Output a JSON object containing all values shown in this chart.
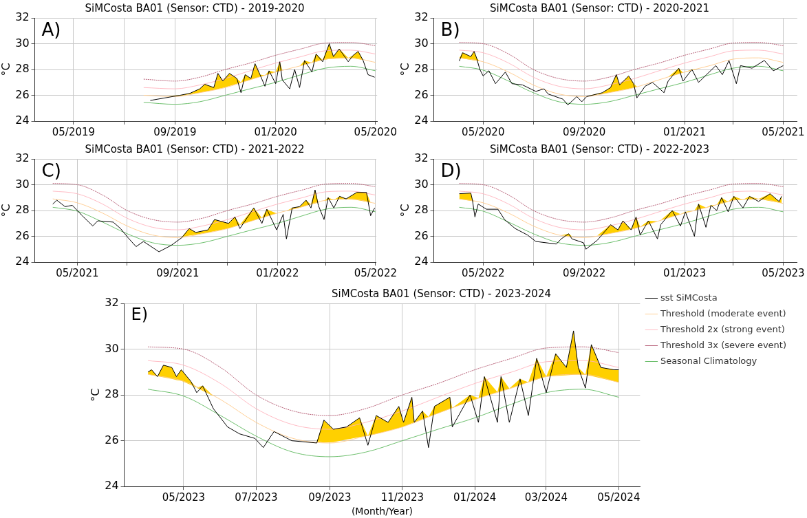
{
  "chart_data": [
    {
      "type": "line",
      "title": "SiMCosta BA01 (Sensor: CTD) - 2019-2020",
      "ylabel": "°C",
      "annotations": [
        "A)"
      ],
      "xlim": [
        "2019-03-15",
        "2020-05-03"
      ],
      "xticks": [
        {
          "value": "2019-05-01",
          "label": "05/2019"
        },
        {
          "value": "2019-07-01",
          "label": null
        },
        {
          "value": "2019-09-01",
          "label": "09/2019"
        },
        {
          "value": "2019-11-01",
          "label": null
        },
        {
          "value": "2020-01-01",
          "label": "01/2020"
        },
        {
          "value": "2020-03-01",
          "label": null
        },
        {
          "value": "2020-05-01",
          "label": "05/2020"
        }
      ],
      "ylim": [
        24,
        32
      ],
      "yticks": [
        24,
        26,
        28,
        30,
        32
      ],
      "grid": true,
      "x": [
        "2019-07-25",
        "2019-09-01",
        "2019-10-01",
        "2019-11-01",
        "2019-12-01",
        "2020-01-01",
        "2020-02-01",
        "2020-03-01",
        "2020-04-01",
        "2020-05-01"
      ],
      "series": [
        {
          "color": "#000000",
          "x": [
            "2019-08-02",
            "2019-08-20",
            "2019-09-07",
            "2019-09-19",
            "2019-10-01",
            "2019-10-07",
            "2019-10-18",
            "2019-10-23",
            "2019-10-29",
            "2019-11-06",
            "2019-11-15",
            "2019-11-20",
            "2019-11-25",
            "2019-12-02",
            "2019-12-07",
            "2019-12-13",
            "2019-12-19",
            "2019-12-24",
            "2020-01-01",
            "2020-01-06",
            "2020-01-09",
            "2020-01-18",
            "2020-01-24",
            "2020-01-30",
            "2020-02-05",
            "2020-02-14",
            "2020-02-19",
            "2020-02-27",
            "2020-03-06",
            "2020-03-11",
            "2020-03-18",
            "2020-03-29",
            "2020-04-04",
            "2020-04-10",
            "2020-04-16",
            "2020-04-22",
            "2020-04-30"
          ],
          "values": [
            25.6,
            25.8,
            26.0,
            26.15,
            26.5,
            26.85,
            26.6,
            27.7,
            27.1,
            27.7,
            27.3,
            26.2,
            27.6,
            27.3,
            28.45,
            27.6,
            26.7,
            27.9,
            26.9,
            28.6,
            27.2,
            26.5,
            28.0,
            26.6,
            28.7,
            27.8,
            29.2,
            28.6,
            30.0,
            29.0,
            29.6,
            28.6,
            29.1,
            29.4,
            28.7,
            27.6,
            27.4
          ],
          "lower": [
            26.0,
            25.95,
            25.96,
            26.08,
            26.2,
            26.28,
            26.42,
            26.49,
            26.57,
            26.72,
            26.9,
            27.0,
            27.1,
            27.22,
            27.32,
            27.43,
            27.55,
            27.65,
            27.8,
            27.88,
            27.93,
            28.07,
            28.17,
            28.27,
            28.37,
            28.52,
            28.6,
            28.74,
            28.82,
            28.83,
            28.86,
            28.89,
            28.87,
            28.8,
            28.73,
            28.66,
            28.56
          ],
          "upper": [
            26.0,
            25.95,
            26.0,
            26.15,
            26.5,
            26.85,
            26.6,
            27.7,
            27.1,
            27.7,
            27.3,
            27.0,
            27.6,
            27.3,
            28.45,
            27.6,
            27.55,
            27.9,
            27.8,
            28.6,
            27.93,
            28.07,
            28.17,
            28.27,
            28.7,
            28.52,
            29.2,
            28.74,
            30.0,
            29.0,
            29.6,
            28.89,
            29.1,
            29.4,
            28.73,
            28.66,
            28.56
          ]
        },
        {
          "color": "#ffc98a",
          "values": [
            26.0,
            25.9,
            26.2,
            26.6,
            27.2,
            27.8,
            28.3,
            28.8,
            28.9,
            28.55
          ]
        },
        {
          "color": "#ffb3bd",
          "values": [
            26.6,
            26.5,
            26.8,
            27.3,
            27.9,
            28.5,
            29.0,
            29.45,
            29.5,
            29.2
          ]
        },
        {
          "color": "#b0506a",
          "line_style": "dotted",
          "values": [
            27.25,
            27.1,
            27.4,
            28.0,
            28.5,
            29.1,
            29.6,
            30.05,
            30.1,
            29.85
          ]
        },
        {
          "color": "#5cb85c",
          "values": [
            25.45,
            25.3,
            25.5,
            26.0,
            26.5,
            27.0,
            27.6,
            28.1,
            28.25,
            27.9
          ]
        }
      ]
    },
    {
      "type": "line",
      "title": "SiMCosta BA01 (Sensor: CTD) - 2020-2021",
      "ylabel": "°C",
      "annotations": [
        "B)"
      ],
      "xlim": [
        "2020-03-02",
        "2021-05-18"
      ],
      "xticks": [
        {
          "value": "2020-05-01",
          "label": "05/2020"
        },
        {
          "value": "2020-07-01",
          "label": null
        },
        {
          "value": "2020-09-01",
          "label": "09/2020"
        },
        {
          "value": "2020-11-01",
          "label": null
        },
        {
          "value": "2021-01-01",
          "label": "01/2021"
        },
        {
          "value": "2021-03-01",
          "label": null
        },
        {
          "value": "2021-05-01",
          "label": "05/2021"
        }
      ],
      "ylim": [
        24,
        32
      ],
      "yticks": [
        24,
        26,
        28,
        30,
        32
      ],
      "grid": true,
      "x": [
        "2020-04-02",
        "2020-05-01",
        "2020-06-01",
        "2020-07-01",
        "2020-08-01",
        "2020-09-01",
        "2020-10-01",
        "2020-11-01",
        "2020-12-01",
        "2021-01-01",
        "2021-02-01",
        "2021-03-01",
        "2021-04-01",
        "2021-05-01"
      ],
      "series": [
        {
          "color": "#000000",
          "x": [
            "2020-04-02",
            "2020-04-06",
            "2020-04-16",
            "2020-04-20",
            "2020-04-23",
            "2020-04-27",
            "2020-05-01",
            "2020-05-08",
            "2020-05-16",
            "2020-05-28",
            "2020-06-05",
            "2020-06-18",
            "2020-07-04",
            "2020-07-14",
            "2020-07-19",
            "2020-08-06",
            "2020-08-12",
            "2020-08-23",
            "2020-08-29",
            "2020-09-04",
            "2020-09-23",
            "2020-10-03",
            "2020-10-10",
            "2020-10-14",
            "2020-10-25",
            "2020-10-31",
            "2020-11-04",
            "2020-11-14",
            "2020-11-23",
            "2020-12-07",
            "2020-12-12",
            "2020-12-25",
            "2020-12-30",
            "2021-01-10",
            "2021-01-18",
            "2021-02-08",
            "2021-02-16",
            "2021-02-24",
            "2021-03-05",
            "2021-03-10",
            "2021-03-24",
            "2021-04-08",
            "2021-04-19",
            "2021-05-01"
          ],
          "values": [
            28.65,
            29.3,
            29.0,
            29.4,
            28.9,
            28.0,
            27.5,
            27.9,
            26.9,
            27.8,
            26.9,
            26.8,
            26.3,
            26.5,
            26.1,
            25.7,
            25.25,
            25.9,
            25.5,
            25.9,
            26.2,
            26.6,
            27.6,
            26.8,
            27.5,
            26.9,
            25.8,
            26.7,
            27.0,
            26.2,
            27.1,
            28.1,
            27.1,
            28.0,
            27.0,
            28.3,
            27.6,
            28.7,
            26.9,
            28.3,
            28.1,
            28.7,
            27.9,
            28.3
          ],
          "lower": [
            28.9,
            28.85,
            28.75,
            28.71,
            28.68,
            28.64,
            28.6,
            28.42,
            28.21,
            27.9,
            27.67,
            27.23,
            26.73,
            26.51,
            26.39,
            26.07,
            26.03,
            25.96,
            25.92,
            25.93,
            26.12,
            26.23,
            26.32,
            26.37,
            26.51,
            26.59,
            26.68,
            26.88,
            27.06,
            27.32,
            27.41,
            27.66,
            27.76,
            27.95,
            28.07,
            28.42,
            28.55,
            28.69,
            28.81,
            28.83,
            28.87,
            28.82,
            28.69,
            28.55
          ],
          "upper": [
            28.9,
            29.3,
            29.0,
            29.4,
            28.9,
            28.64,
            28.6,
            28.42,
            28.21,
            27.9,
            27.67,
            27.23,
            26.73,
            26.51,
            26.39,
            26.07,
            26.03,
            25.96,
            25.92,
            25.93,
            26.2,
            26.6,
            27.6,
            26.8,
            27.5,
            26.9,
            26.68,
            26.88,
            27.06,
            27.32,
            27.41,
            28.1,
            27.76,
            28.0,
            28.07,
            28.42,
            28.55,
            28.7,
            28.81,
            28.83,
            28.87,
            28.82,
            28.69,
            28.55
          ]
        },
        {
          "color": "#ffc98a",
          "values": [
            28.9,
            28.6,
            27.8,
            26.8,
            26.1,
            25.9,
            26.2,
            26.6,
            27.2,
            27.8,
            28.3,
            28.8,
            28.9,
            28.55
          ]
        },
        {
          "color": "#ffb3bd",
          "values": [
            29.5,
            29.3,
            28.5,
            27.4,
            26.7,
            26.5,
            26.8,
            27.3,
            27.9,
            28.5,
            29.0,
            29.45,
            29.5,
            29.2
          ]
        },
        {
          "color": "#b0506a",
          "line_style": "dotted",
          "values": [
            30.1,
            30.0,
            29.2,
            28.0,
            27.3,
            27.1,
            27.4,
            28.0,
            28.5,
            29.1,
            29.6,
            30.05,
            30.1,
            29.85
          ]
        },
        {
          "color": "#5cb85c",
          "values": [
            28.25,
            27.95,
            27.1,
            26.2,
            25.5,
            25.3,
            25.5,
            26.0,
            26.5,
            27.0,
            27.6,
            28.1,
            28.25,
            27.9
          ]
        }
      ]
    },
    {
      "type": "line",
      "title": "SiMCosta BA01 (Sensor: CTD) - 2021-2022",
      "ylabel": "°C",
      "annotations": [
        "C)"
      ],
      "xlim": [
        "2021-03-10",
        "2022-05-02"
      ],
      "xticks": [
        {
          "value": "2021-05-01",
          "label": "05/2021"
        },
        {
          "value": "2021-07-01",
          "label": null
        },
        {
          "value": "2021-09-01",
          "label": "09/2021"
        },
        {
          "value": "2021-11-01",
          "label": null
        },
        {
          "value": "2022-01-01",
          "label": "01/2022"
        },
        {
          "value": "2022-03-01",
          "label": null
        },
        {
          "value": "2022-05-01",
          "label": "05/2022"
        }
      ],
      "ylim": [
        24,
        32
      ],
      "yticks": [
        24,
        26,
        28,
        30,
        32
      ],
      "grid": true,
      "x": [
        "2021-04-01",
        "2021-05-01",
        "2021-06-01",
        "2021-07-01",
        "2021-08-01",
        "2021-09-01",
        "2021-10-01",
        "2021-11-01",
        "2021-12-01",
        "2022-01-01",
        "2022-02-01",
        "2022-03-01",
        "2022-04-01",
        "2022-05-01"
      ],
      "series": [
        {
          "color": "#000000",
          "x": [
            "2021-04-01",
            "2021-04-06",
            "2021-04-16",
            "2021-04-25",
            "2021-05-07",
            "2021-05-20",
            "2021-05-26",
            "2021-06-14",
            "2021-06-23",
            "2021-07-02",
            "2021-07-12",
            "2021-07-21",
            "2021-08-09",
            "2021-08-24",
            "2021-09-06",
            "2021-09-15",
            "2021-09-23",
            "2021-10-08",
            "2021-10-16",
            "2021-11-02",
            "2021-11-10",
            "2021-11-16",
            "2021-12-03",
            "2021-12-13",
            "2021-12-19",
            "2021-12-31",
            "2022-01-08",
            "2022-01-12",
            "2022-01-19",
            "2022-01-28",
            "2022-02-05",
            "2022-02-11",
            "2022-02-16",
            "2022-02-20",
            "2022-02-27",
            "2022-03-04",
            "2022-03-11",
            "2022-03-18",
            "2022-03-26",
            "2022-04-08",
            "2022-04-20",
            "2022-04-25",
            "2022-04-30"
          ],
          "values": [
            28.5,
            28.8,
            28.3,
            28.4,
            27.6,
            26.8,
            27.2,
            27.1,
            26.6,
            25.9,
            25.2,
            25.6,
            24.8,
            25.3,
            25.9,
            26.6,
            26.3,
            26.5,
            27.3,
            27.0,
            27.5,
            26.6,
            28.2,
            27.0,
            28.1,
            26.5,
            27.7,
            25.8,
            28.2,
            28.3,
            28.8,
            28.2,
            29.6,
            28.4,
            27.3,
            29.0,
            28.2,
            29.1,
            28.9,
            29.4,
            29.4,
            27.6,
            28.2
          ],
          "lower": [
            28.9,
            28.85,
            28.75,
            28.66,
            28.45,
            28.11,
            27.95,
            27.44,
            27.13,
            26.78,
            26.55,
            26.35,
            26.05,
            25.95,
            25.96,
            26.05,
            26.13,
            26.3,
            26.4,
            26.62,
            26.78,
            26.9,
            27.24,
            27.43,
            27.55,
            27.78,
            27.9,
            27.97,
            28.08,
            28.22,
            28.37,
            28.47,
            28.55,
            28.62,
            28.74,
            28.81,
            28.83,
            28.85,
            28.88,
            28.82,
            28.68,
            28.62,
            28.56
          ],
          "upper": [
            28.9,
            28.85,
            28.75,
            28.66,
            28.45,
            28.11,
            27.95,
            27.44,
            27.13,
            26.78,
            26.55,
            26.35,
            26.05,
            25.95,
            25.96,
            26.6,
            26.3,
            26.5,
            27.3,
            27.0,
            27.5,
            26.9,
            28.2,
            27.43,
            28.1,
            27.78,
            27.9,
            27.97,
            28.2,
            28.3,
            28.8,
            28.47,
            29.6,
            28.62,
            28.74,
            29.0,
            28.83,
            29.1,
            28.9,
            29.4,
            29.4,
            28.62,
            28.56
          ]
        },
        {
          "color": "#ffc98a",
          "values": [
            28.9,
            28.6,
            27.8,
            26.8,
            26.1,
            25.9,
            26.2,
            26.6,
            27.2,
            27.8,
            28.3,
            28.8,
            28.9,
            28.55
          ]
        },
        {
          "color": "#ffb3bd",
          "values": [
            29.5,
            29.3,
            28.5,
            27.4,
            26.7,
            26.5,
            26.8,
            27.3,
            27.9,
            28.5,
            29.0,
            29.45,
            29.5,
            29.2
          ]
        },
        {
          "color": "#b0506a",
          "line_style": "dotted",
          "values": [
            30.1,
            30.0,
            29.2,
            28.0,
            27.3,
            27.1,
            27.4,
            28.0,
            28.5,
            29.1,
            29.6,
            30.05,
            30.1,
            29.85
          ]
        },
        {
          "color": "#5cb85c",
          "values": [
            28.25,
            27.95,
            27.1,
            26.2,
            25.5,
            25.3,
            25.5,
            26.0,
            26.5,
            27.0,
            27.6,
            28.1,
            28.25,
            27.9
          ]
        }
      ]
    },
    {
      "type": "line",
      "title": "SiMCosta BA01 (Sensor: CTD) - 2022-2023",
      "ylabel": "°C",
      "annotations": [
        "D)"
      ],
      "xlim": [
        "2022-03-02",
        "2023-05-18"
      ],
      "xticks": [
        {
          "value": "2022-05-01",
          "label": "05/2022"
        },
        {
          "value": "2022-07-01",
          "label": null
        },
        {
          "value": "2022-09-01",
          "label": "09/2022"
        },
        {
          "value": "2022-11-01",
          "label": null
        },
        {
          "value": "2023-01-01",
          "label": "01/2023"
        },
        {
          "value": "2023-03-01",
          "label": null
        },
        {
          "value": "2023-05-01",
          "label": "05/2023"
        }
      ],
      "ylim": [
        24,
        32
      ],
      "yticks": [
        24,
        26,
        28,
        30,
        32
      ],
      "grid": true,
      "x": [
        "2022-04-02",
        "2022-05-01",
        "2022-06-01",
        "2022-07-01",
        "2022-08-01",
        "2022-09-01",
        "2022-10-01",
        "2022-11-01",
        "2022-12-01",
        "2023-01-01",
        "2023-02-01",
        "2023-03-01",
        "2023-04-01",
        "2023-05-01"
      ],
      "series": [
        {
          "color": "#000000",
          "x": [
            "2022-04-02",
            "2022-04-16",
            "2022-04-18",
            "2022-04-21",
            "2022-04-25",
            "2022-05-05",
            "2022-05-19",
            "2022-05-27",
            "2022-06-09",
            "2022-06-24",
            "2022-07-04",
            "2022-07-29",
            "2022-08-04",
            "2022-08-13",
            "2022-08-17",
            "2022-08-31",
            "2022-09-03",
            "2022-09-17",
            "2022-10-03",
            "2022-10-12",
            "2022-10-18",
            "2022-10-28",
            "2022-11-03",
            "2022-11-08",
            "2022-11-18",
            "2022-11-29",
            "2022-12-03",
            "2022-12-17",
            "2022-12-27",
            "2023-01-02",
            "2023-01-13",
            "2023-01-18",
            "2023-01-27",
            "2023-02-02",
            "2023-02-09",
            "2023-02-15",
            "2023-02-23",
            "2023-03-02",
            "2023-03-13",
            "2023-03-21",
            "2023-04-01",
            "2023-04-15",
            "2023-04-26",
            "2023-04-29"
          ],
          "values": [
            29.3,
            29.35,
            28.8,
            27.5,
            28.5,
            28.1,
            28.1,
            27.3,
            26.6,
            26.1,
            25.6,
            25.4,
            25.8,
            26.2,
            25.8,
            25.5,
            25.0,
            25.7,
            26.9,
            26.5,
            27.2,
            26.5,
            27.5,
            26.1,
            27.2,
            25.8,
            26.9,
            28.0,
            26.8,
            27.9,
            26.0,
            28.5,
            26.7,
            28.4,
            28.0,
            29.0,
            27.9,
            29.1,
            28.2,
            29.1,
            28.7,
            29.3,
            28.7,
            29.1
          ],
          "lower": [
            28.9,
            28.75,
            28.73,
            28.7,
            28.66,
            28.5,
            28.14,
            27.93,
            27.53,
            27.03,
            26.73,
            26.16,
            26.08,
            26.02,
            26.0,
            25.9,
            25.93,
            26.07,
            26.23,
            26.35,
            26.43,
            26.56,
            26.64,
            26.74,
            26.94,
            27.17,
            27.26,
            27.53,
            27.72,
            27.83,
            28.0,
            28.08,
            28.23,
            28.32,
            28.44,
            28.54,
            28.67,
            28.8,
            28.84,
            28.86,
            28.9,
            28.74,
            28.61,
            28.57
          ],
          "upper": [
            29.3,
            29.35,
            28.8,
            28.7,
            28.66,
            28.5,
            28.14,
            27.93,
            27.53,
            27.03,
            26.73,
            26.16,
            26.08,
            26.2,
            26.0,
            25.9,
            25.93,
            26.07,
            26.9,
            26.5,
            27.2,
            26.56,
            27.5,
            26.74,
            27.2,
            27.17,
            27.26,
            28.0,
            27.72,
            27.9,
            28.0,
            28.5,
            28.23,
            28.4,
            28.44,
            29.0,
            28.67,
            29.1,
            28.84,
            29.1,
            28.9,
            29.3,
            28.7,
            29.1
          ]
        },
        {
          "color": "#ffc98a",
          "values": [
            28.9,
            28.6,
            27.8,
            26.8,
            26.1,
            25.9,
            26.2,
            26.6,
            27.2,
            27.8,
            28.3,
            28.8,
            28.9,
            28.55
          ]
        },
        {
          "color": "#ffb3bd",
          "values": [
            29.5,
            29.3,
            28.5,
            27.4,
            26.7,
            26.5,
            26.8,
            27.3,
            27.9,
            28.5,
            29.0,
            29.45,
            29.5,
            29.2
          ]
        },
        {
          "color": "#b0506a",
          "line_style": "dotted",
          "values": [
            30.1,
            30.0,
            29.2,
            28.0,
            27.3,
            27.1,
            27.4,
            28.0,
            28.5,
            29.1,
            29.6,
            30.05,
            30.1,
            29.85
          ]
        },
        {
          "color": "#5cb85c",
          "values": [
            28.25,
            27.95,
            27.1,
            26.2,
            25.5,
            25.3,
            25.5,
            26.0,
            26.5,
            27.0,
            27.6,
            28.1,
            28.25,
            27.9
          ]
        }
      ]
    },
    {
      "type": "line",
      "title": "SiMCosta BA01 (Sensor: CTD) - 2023-2024",
      "xlabel": "(Month/Year)",
      "ylabel": "°C",
      "annotations": [
        "E)"
      ],
      "legend": "right",
      "xlim": [
        "2023-03-12",
        "2024-05-19"
      ],
      "xticks": [
        {
          "value": "2023-05-01",
          "label": "05/2023"
        },
        {
          "value": "2023-07-01",
          "label": "07/2023"
        },
        {
          "value": "2023-09-01",
          "label": "09/2023"
        },
        {
          "value": "2023-11-01",
          "label": "11/2023"
        },
        {
          "value": "2024-01-01",
          "label": "01/2024"
        },
        {
          "value": "2024-03-01",
          "label": "03/2024"
        },
        {
          "value": "2024-05-01",
          "label": "05/2024"
        }
      ],
      "ylim": [
        24,
        32
      ],
      "yticks": [
        24,
        26,
        28,
        30,
        32
      ],
      "grid": true,
      "x": [
        "2023-04-01",
        "2023-05-01",
        "2023-06-01",
        "2023-07-01",
        "2023-08-01",
        "2023-09-01",
        "2023-10-01",
        "2023-11-01",
        "2023-12-01",
        "2024-01-01",
        "2024-02-01",
        "2024-03-01",
        "2024-04-01",
        "2024-05-01"
      ],
      "series": [
        {
          "name": "sst SiMCosta",
          "color": "#000000",
          "x": [
            "2023-04-01",
            "2023-04-04",
            "2023-04-09",
            "2023-04-14",
            "2023-04-21",
            "2023-04-25",
            "2023-04-29",
            "2023-05-07",
            "2023-05-12",
            "2023-05-17",
            "2023-05-26",
            "2023-06-07",
            "2023-06-17",
            "2023-06-30",
            "2023-07-07",
            "2023-07-16",
            "2023-07-31",
            "2023-08-21",
            "2023-08-27",
            "2023-09-04",
            "2023-09-15",
            "2023-09-26",
            "2023-10-03",
            "2023-10-10",
            "2023-10-20",
            "2023-10-29",
            "2023-11-02",
            "2023-11-09",
            "2023-11-11",
            "2023-11-18",
            "2023-11-23",
            "2023-11-28",
            "2023-12-11",
            "2023-12-13",
            "2023-12-28",
            "2024-01-04",
            "2024-01-09",
            "2024-01-20",
            "2024-01-23",
            "2024-01-30",
            "2024-02-08",
            "2024-02-15",
            "2024-02-22",
            "2024-03-01",
            "2024-03-09",
            "2024-03-18",
            "2024-03-24",
            "2024-03-28",
            "2024-04-03",
            "2024-04-08",
            "2024-04-16",
            "2024-04-27",
            "2024-05-01"
          ],
          "values": [
            29.0,
            29.1,
            28.8,
            29.3,
            29.2,
            28.8,
            29.1,
            28.6,
            28.1,
            28.4,
            27.4,
            26.6,
            26.3,
            26.1,
            25.7,
            26.4,
            26.0,
            25.9,
            26.9,
            26.5,
            26.6,
            27.0,
            25.8,
            27.1,
            26.8,
            27.5,
            26.8,
            27.9,
            26.8,
            27.3,
            25.7,
            27.5,
            27.9,
            26.6,
            28.0,
            26.8,
            28.8,
            26.8,
            28.8,
            26.8,
            28.7,
            27.1,
            29.6,
            28.1,
            29.8,
            29.2,
            30.8,
            29.2,
            28.3,
            30.2,
            29.2,
            29.1,
            29.1
          ],
          "lower": [
            28.9,
            28.87,
            28.82,
            28.77,
            28.7,
            28.65,
            28.62,
            28.44,
            28.31,
            28.18,
            27.95,
            27.62,
            27.29,
            26.83,
            26.64,
            26.44,
            26.1,
            25.96,
            25.92,
            25.94,
            26.05,
            26.16,
            26.21,
            26.3,
            26.43,
            26.55,
            26.62,
            26.76,
            26.8,
            26.94,
            27.04,
            27.14,
            27.39,
            27.43,
            27.72,
            27.86,
            27.94,
            28.12,
            28.17,
            28.28,
            28.43,
            28.55,
            28.67,
            28.8,
            28.83,
            28.86,
            28.88,
            28.89,
            28.88,
            28.83,
            28.73,
            28.6,
            28.55
          ],
          "upper": [
            29.0,
            29.1,
            28.82,
            29.3,
            29.2,
            28.8,
            29.1,
            28.6,
            28.31,
            28.4,
            27.95,
            27.62,
            27.29,
            26.83,
            26.64,
            26.44,
            26.1,
            25.96,
            26.9,
            26.5,
            26.6,
            27.0,
            26.21,
            27.1,
            26.8,
            27.5,
            26.8,
            27.9,
            26.8,
            27.3,
            27.04,
            27.5,
            27.9,
            27.43,
            28.0,
            27.86,
            28.8,
            28.12,
            28.8,
            28.28,
            28.7,
            28.55,
            29.6,
            28.8,
            29.8,
            29.2,
            30.8,
            29.2,
            28.88,
            30.2,
            29.2,
            29.1,
            29.1
          ]
        },
        {
          "name": "Threshold (moderate event)",
          "color": "#ffc98a",
          "values": [
            28.9,
            28.6,
            27.8,
            26.8,
            26.1,
            25.9,
            26.2,
            26.6,
            27.2,
            27.8,
            28.3,
            28.8,
            28.9,
            28.55
          ]
        },
        {
          "name": "Threshold 2x (strong event)",
          "color": "#ffb3bd",
          "values": [
            29.5,
            29.3,
            28.5,
            27.4,
            26.7,
            26.5,
            26.8,
            27.3,
            27.9,
            28.5,
            29.0,
            29.45,
            29.5,
            29.2
          ]
        },
        {
          "name": "Threshold 3x (severe event)",
          "color": "#b0506a",
          "line_style": "dotted",
          "values": [
            30.1,
            30.0,
            29.2,
            28.0,
            27.3,
            27.1,
            27.4,
            28.0,
            28.5,
            29.1,
            29.6,
            30.05,
            30.1,
            29.85
          ]
        },
        {
          "name": "Seasonal Climatology",
          "color": "#5cb85c",
          "values": [
            28.25,
            27.95,
            27.1,
            26.2,
            25.5,
            25.3,
            25.5,
            26.0,
            26.5,
            27.0,
            27.6,
            28.1,
            28.25,
            27.9
          ]
        }
      ]
    }
  ]
}
